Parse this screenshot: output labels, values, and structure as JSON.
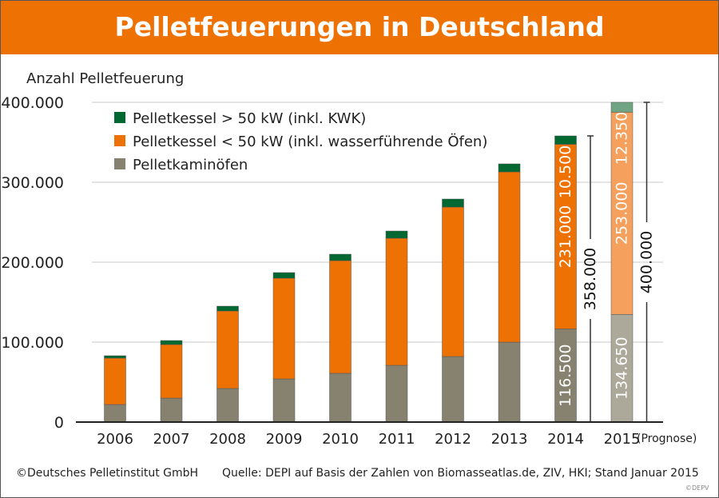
{
  "chart_data": {
    "type": "bar",
    "stacked": true,
    "title": "Pelletfeuerungen in Deutschland",
    "ylabel": "Anzahl Pelletfeuerung",
    "xlabel": "",
    "ylim": [
      0,
      400000
    ],
    "yticks": [
      0,
      100000,
      200000,
      300000,
      400000
    ],
    "ytick_labels": [
      "0",
      "100.000",
      "200.000",
      "300.000",
      "400.000"
    ],
    "grid": true,
    "legend_position": "top-left",
    "categories": [
      "2006",
      "2007",
      "2008",
      "2009",
      "2010",
      "2011",
      "2012",
      "2013",
      "2014",
      "2015"
    ],
    "forecast_note": "(Prognose)",
    "series": [
      {
        "name": "Pelletkaminöfen",
        "color": "#878170",
        "forecast_color": "#aca99b",
        "values": [
          22000,
          30000,
          42000,
          54000,
          61000,
          71000,
          82000,
          100000,
          116500,
          134650
        ]
      },
      {
        "name": "Pelletkessel < 50 kW (inkl. wasserführende Öfen)",
        "color": "#ee7203",
        "forecast_color": "#f5a05c",
        "values": [
          58000,
          67000,
          97000,
          126000,
          141000,
          159000,
          187000,
          213000,
          231000,
          253000
        ]
      },
      {
        "name": "Pelletkessel > 50 kW (inkl. KWK)",
        "color": "#006830",
        "forecast_color": "#6fa582",
        "values": [
          3000,
          5000,
          6000,
          7000,
          8000,
          9000,
          10000,
          10000,
          10500,
          12350
        ]
      }
    ],
    "legend_order": [
      2,
      1,
      0
    ],
    "data_labels": {
      "2014": [
        "116.500",
        "231.000",
        "10.500"
      ],
      "2015": [
        "134.650",
        "253.000",
        "12.350"
      ]
    },
    "totals": {
      "2014": "358.000",
      "2015": "400.000"
    }
  },
  "footer": {
    "copyright": "©Deutsches Pelletinstitut GmbH",
    "source": "Quelle: DEPI auf Basis der Zahlen von Biomasseatlas.de, ZIV, HKI; Stand Januar 2015",
    "watermark": "©DEPV"
  }
}
